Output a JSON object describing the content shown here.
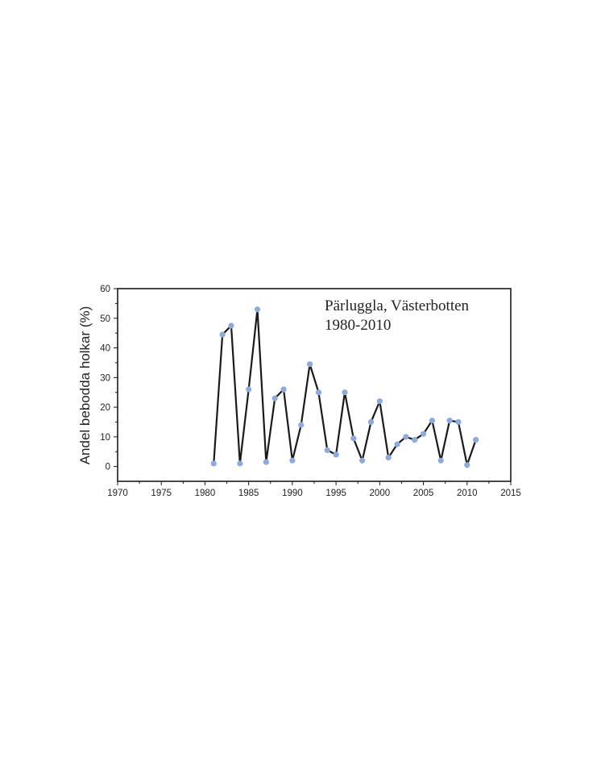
{
  "chart_data": {
    "type": "line",
    "title": "Pärluggla, Västerbotten",
    "subtitle": "1980-2010",
    "xlabel": "",
    "ylabel": "Andel bebodda holkar (%)",
    "xlim": [
      1970,
      2015
    ],
    "ylim": [
      -5,
      60
    ],
    "xticks": [
      1970,
      1975,
      1980,
      1985,
      1990,
      1995,
      2000,
      2005,
      2010,
      2015
    ],
    "yticks": [
      0,
      10,
      20,
      30,
      40,
      50,
      60
    ],
    "grid": false,
    "legend": "none",
    "series": [
      {
        "line_color": "#1a1a1a",
        "marker_color": "#8eaadb",
        "x": [
          1981,
          1982,
          1983,
          1984,
          1985,
          1986,
          1987,
          1988,
          1989,
          1990,
          1991,
          1992,
          1993,
          1994,
          1995,
          1996,
          1997,
          1998,
          1999,
          2000,
          2001,
          2002,
          2003,
          2004,
          2005,
          2006,
          2007,
          2008,
          2009,
          2010,
          2011
        ],
        "y": [
          1,
          44.5,
          47.5,
          1,
          26,
          53,
          1.5,
          23,
          26,
          2,
          14,
          34.5,
          25,
          5.5,
          4,
          25,
          9.5,
          2,
          15,
          22,
          3,
          7.5,
          10,
          9,
          11,
          15.5,
          2,
          15.5,
          15,
          0.5,
          9
        ]
      }
    ]
  }
}
